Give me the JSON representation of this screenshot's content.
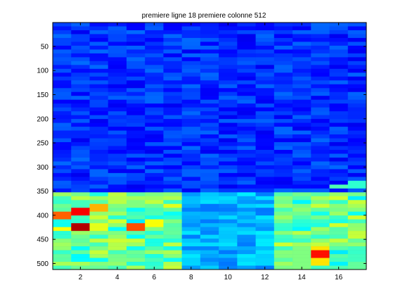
{
  "chart_data": {
    "type": "heatmap",
    "title": "premiere ligne 18 premiere colonne 512",
    "xlabel": "",
    "ylabel": "",
    "x_range": [
      0.5,
      17.5
    ],
    "y_range": [
      0.5,
      512.5
    ],
    "y_reversed": true,
    "x_ticks": [
      2,
      4,
      6,
      8,
      10,
      12,
      14,
      16
    ],
    "y_ticks": [
      50,
      100,
      150,
      200,
      250,
      300,
      350,
      400,
      450,
      500
    ],
    "n_columns": 17,
    "n_rows": 512,
    "colormap": "jet",
    "background_level": 0.17,
    "hotspots": [
      {
        "column": 1,
        "row_from": 395,
        "row_to": 403,
        "level": 0.78
      },
      {
        "column": 1,
        "row_from": 425,
        "row_to": 430,
        "level": 0.62
      },
      {
        "column": 2,
        "row_from": 390,
        "row_to": 396,
        "level": 0.88
      },
      {
        "column": 2,
        "row_from": 423,
        "row_to": 428,
        "level": 0.95
      },
      {
        "column": 3,
        "row_from": 383,
        "row_to": 390,
        "level": 0.7
      },
      {
        "column": 3,
        "row_from": 424,
        "row_to": 430,
        "level": 0.6
      },
      {
        "column": 4,
        "row_from": 362,
        "row_to": 372,
        "level": 0.55
      },
      {
        "column": 4,
        "row_from": 410,
        "row_to": 416,
        "level": 0.58
      },
      {
        "column": 5,
        "row_from": 420,
        "row_to": 428,
        "level": 0.8
      },
      {
        "column": 5,
        "row_from": 372,
        "row_to": 378,
        "level": 0.5
      },
      {
        "column": 6,
        "row_from": 413,
        "row_to": 420,
        "level": 0.62
      },
      {
        "column": 15,
        "row_from": 478,
        "row_to": 485,
        "level": 0.86
      },
      {
        "column": 15,
        "row_from": 470,
        "row_to": 500,
        "level": 0.65
      },
      {
        "column": 14,
        "row_from": 470,
        "row_to": 505,
        "level": 0.5
      },
      {
        "column": 16,
        "row_from": 338,
        "row_to": 344,
        "level": 0.45
      },
      {
        "column": 17,
        "row_from": 335,
        "row_to": 342,
        "level": 0.42
      }
    ],
    "background_profile": [
      {
        "row_from": 1,
        "row_to": 350,
        "level": 0.17
      },
      {
        "row_from": 350,
        "row_to": 512,
        "level": 0.3
      }
    ]
  }
}
